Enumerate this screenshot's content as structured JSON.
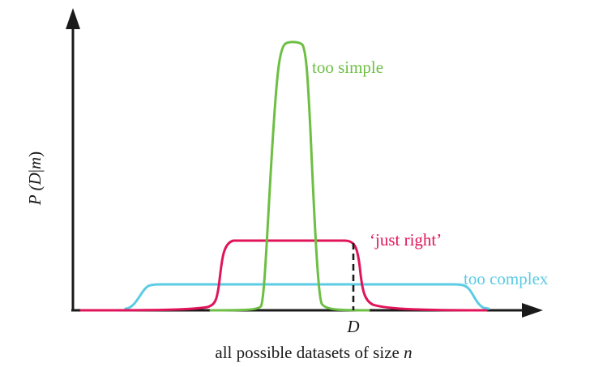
{
  "diagram": {
    "y_axis_label": {
      "prefix": "P (",
      "var_d": "D",
      "bar": "|",
      "var_m": "m",
      "suffix": ")"
    },
    "x_axis_label": {
      "text": "all possible datasets of size ",
      "var": "n"
    },
    "d_marker_label": "D",
    "curves": [
      {
        "id": "too-simple",
        "label": "too simple",
        "color": "#6dbf44"
      },
      {
        "id": "just-right",
        "label": "‘just right’",
        "color": "#e0145a"
      },
      {
        "id": "too-complex",
        "label": "too complex",
        "color": "#5ccbe4"
      }
    ],
    "axis_color": "#1a1a1a"
  }
}
